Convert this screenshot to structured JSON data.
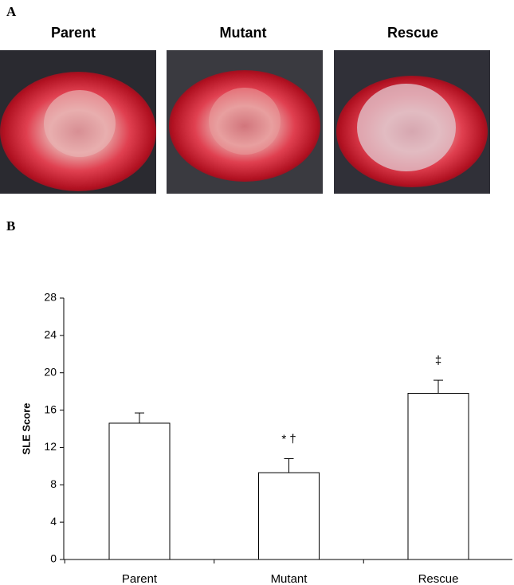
{
  "figure": {
    "panel_a": "A",
    "panel_b": "B",
    "photo_titles": [
      "Parent",
      "Mutant",
      "Rescue"
    ]
  },
  "chart_data": {
    "type": "bar",
    "y_label": "SLE Score",
    "categories": [
      "Parent",
      "Mutant",
      "Rescue"
    ],
    "values": [
      14.6,
      9.3,
      17.8
    ],
    "errors": [
      1.1,
      1.5,
      1.4
    ],
    "annotations": [
      null,
      "* †",
      "‡"
    ],
    "color": "#ffffff",
    "edge_color": "#000000",
    "ylim": [
      0,
      28
    ],
    "yticks": [
      0,
      4,
      8,
      12,
      16,
      20,
      24,
      28
    ],
    "grid": false
  }
}
